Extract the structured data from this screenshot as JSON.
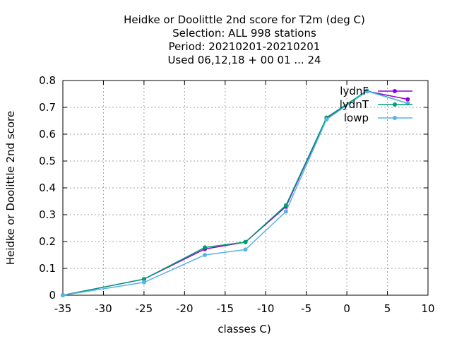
{
  "chart_data": {
    "type": "line",
    "title_lines": [
      "Heidke or Doolittle 2nd score  for T2m (deg C)",
      "Selection: ALL    998 stations",
      "Period: 20210201-20210201",
      "Used  06,12,18  + 00 01 ... 24"
    ],
    "xlabel": "classes C)",
    "ylabel": "Heidke or Doolittle 2nd score",
    "xlim": [
      -35,
      10
    ],
    "ylim": [
      0,
      0.8
    ],
    "xticks": [
      "-35",
      "-30",
      "-25",
      "-20",
      "-15",
      "-10",
      "-5",
      "0",
      "5",
      "10"
    ],
    "yticks": [
      "0",
      "0.1",
      "0.2",
      "0.3",
      "0.4",
      "0.5",
      "0.6",
      "0.7",
      "0.8"
    ],
    "grid": true,
    "legend_position": "top-right",
    "x": [
      -35,
      -25,
      -17.5,
      -12.5,
      -7.5,
      -2.5,
      2.5,
      7.5
    ],
    "series": [
      {
        "name": "lydnF",
        "color": "#9400d3",
        "values": [
          0.0,
          0.06,
          0.172,
          0.198,
          0.33,
          0.66,
          0.76,
          0.73
        ]
      },
      {
        "name": "lydnT",
        "color": "#009e73",
        "values": [
          0.0,
          0.06,
          0.178,
          0.198,
          0.335,
          0.662,
          0.762,
          0.715
        ]
      },
      {
        "name": "lowp",
        "color": "#56b4e9",
        "values": [
          0.0,
          0.048,
          0.15,
          0.17,
          0.312,
          0.655,
          0.76,
          0.715
        ]
      }
    ]
  }
}
